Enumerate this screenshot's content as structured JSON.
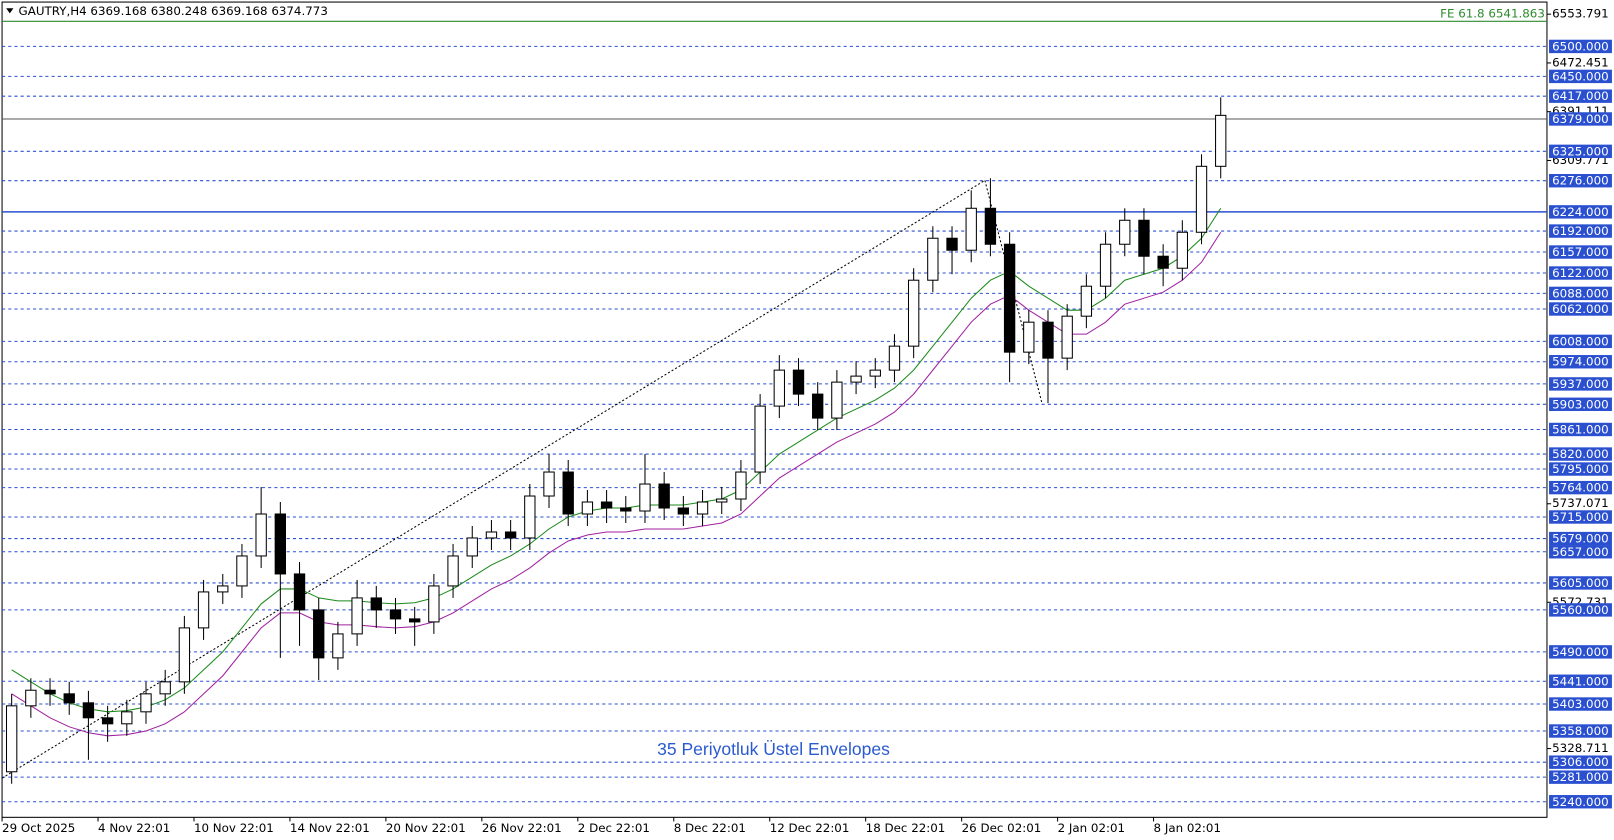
{
  "chart_data": {
    "type": "candlestick",
    "title": "GAUTRY,H4  6369.168 6380.248 6369.168 6374.773",
    "annotation": "35 Periyotluk Üstel Envelopes",
    "xlim": [
      0,
      483
    ],
    "ylim": [
      5214,
      6574
    ],
    "xticks": [
      {
        "value": 0,
        "label": "29 Oct 2025"
      },
      {
        "value": 30,
        "label": "4 Nov 22:01"
      },
      {
        "value": 60,
        "label": "10 Nov 22:01"
      },
      {
        "value": 90,
        "label": "14 Nov 22:01"
      },
      {
        "value": 120,
        "label": "20 Nov 22:01"
      },
      {
        "value": 150,
        "label": "26 Nov 22:01"
      },
      {
        "value": 180,
        "label": "2 Dec 22:01"
      },
      {
        "value": 210,
        "label": "8 Dec 22:01"
      },
      {
        "value": 240,
        "label": "12 Dec 22:01"
      },
      {
        "value": 270,
        "label": "18 Dec 22:01"
      },
      {
        "value": 300,
        "label": "26 Dec 02:01"
      },
      {
        "value": 330,
        "label": "2 Jan 02:01"
      },
      {
        "value": 360,
        "label": "8 Jan 02:01"
      }
    ],
    "yticks": [
      6553.791,
      6472.451,
      6391.111,
      6309.771,
      5737.071,
      5572.731,
      5328.711
    ],
    "levels": [
      {
        "value": 6500,
        "label": "6500.000"
      },
      {
        "value": 6450,
        "label": "6450.000"
      },
      {
        "value": 6417,
        "label": "6417.000"
      },
      {
        "value": 6379,
        "label": "6379.000",
        "line": "solid"
      },
      {
        "value": 6325,
        "label": "6325.000"
      },
      {
        "value": 6276,
        "label": "6276.000"
      },
      {
        "value": 6224,
        "label": "6224.000",
        "line": "solid"
      },
      {
        "value": 6192,
        "label": "6192.000"
      },
      {
        "value": 6157,
        "label": "6157.000"
      },
      {
        "value": 6122,
        "label": "6122.000"
      },
      {
        "value": 6088,
        "label": "6088.000"
      },
      {
        "value": 6062,
        "label": "6062.000"
      },
      {
        "value": 6008,
        "label": "6008.000"
      },
      {
        "value": 5974,
        "label": "5974.000"
      },
      {
        "value": 5937,
        "label": "5937.000"
      },
      {
        "value": 5903,
        "label": "5903.000"
      },
      {
        "value": 5861,
        "label": "5861.000"
      },
      {
        "value": 5820,
        "label": "5820.000"
      },
      {
        "value": 5795,
        "label": "5795.000"
      },
      {
        "value": 5764,
        "label": "5764.000"
      },
      {
        "value": 5715,
        "label": "5715.000"
      },
      {
        "value": 5679,
        "label": "5679.000"
      },
      {
        "value": 5657,
        "label": "5657.000"
      },
      {
        "value": 5605,
        "label": "5605.000"
      },
      {
        "value": 5560,
        "label": "5560.000"
      },
      {
        "value": 5490,
        "label": "5490.000"
      },
      {
        "value": 5441,
        "label": "5441.000"
      },
      {
        "value": 5403,
        "label": "5403.000"
      },
      {
        "value": 5358,
        "label": "5358.000"
      },
      {
        "value": 5306,
        "label": "5306.000"
      },
      {
        "value": 5281,
        "label": "5281.000"
      },
      {
        "value": 5240,
        "label": "5240.000"
      }
    ],
    "fib_line": {
      "value": 6541.863,
      "label": "FE 61.8 6541.863",
      "color": "#2e8b2e"
    },
    "x": [
      3,
      9,
      15,
      21,
      27,
      33,
      39,
      45,
      51,
      57,
      63,
      69,
      75,
      81,
      87,
      93,
      99,
      105,
      111,
      117,
      123,
      129,
      135,
      141,
      147,
      153,
      159,
      165,
      171,
      177,
      183,
      189,
      195,
      201,
      207,
      213,
      219,
      225,
      231,
      237,
      243,
      249,
      255,
      261,
      267,
      273,
      279,
      285,
      291,
      297,
      303,
      309,
      315,
      321,
      327,
      333,
      339,
      345,
      351,
      357,
      363,
      369,
      375,
      381
    ],
    "open": [
      5290,
      5400,
      5426,
      5420,
      5405,
      5380,
      5370,
      5390,
      5420,
      5440,
      5530,
      5590,
      5600,
      5650,
      5720,
      5620,
      5560,
      5480,
      5520,
      5580,
      5560,
      5545,
      5540,
      5600,
      5650,
      5680,
      5690,
      5680,
      5750,
      5790,
      5720,
      5740,
      5730,
      5725,
      5770,
      5730,
      5720,
      5740,
      5745,
      5790,
      5900,
      5960,
      5920,
      5880,
      5940,
      5950,
      5960,
      6000,
      6110,
      6180,
      6160,
      6230,
      6170,
      5990,
      6040,
      5980,
      6050,
      6100,
      6170,
      6210,
      6150,
      6130,
      6190,
      6300
    ],
    "high": [
      5420,
      5446,
      5446,
      5440,
      5425,
      5400,
      5410,
      5440,
      5460,
      5550,
      5610,
      5620,
      5670,
      5765,
      5740,
      5640,
      5580,
      5540,
      5610,
      5600,
      5580,
      5565,
      5620,
      5670,
      5700,
      5710,
      5710,
      5770,
      5820,
      5810,
      5760,
      5760,
      5750,
      5820,
      5790,
      5750,
      5760,
      5765,
      5810,
      5920,
      5985,
      5980,
      5940,
      5960,
      5975,
      5980,
      6020,
      6130,
      6200,
      6200,
      6260,
      6280,
      6190,
      6060,
      6060,
      6070,
      6120,
      6190,
      6230,
      6230,
      6170,
      6210,
      6320,
      6415
    ],
    "low": [
      5270,
      5380,
      5400,
      5385,
      5310,
      5340,
      5350,
      5370,
      5400,
      5420,
      5510,
      5570,
      5580,
      5630,
      5480,
      5500,
      5443,
      5460,
      5500,
      5530,
      5520,
      5500,
      5520,
      5580,
      5630,
      5660,
      5660,
      5660,
      5730,
      5700,
      5700,
      5705,
      5705,
      5705,
      5710,
      5700,
      5700,
      5720,
      5725,
      5770,
      5880,
      5900,
      5860,
      5860,
      5920,
      5930,
      5940,
      5980,
      6090,
      6120,
      6140,
      6150,
      5940,
      5970,
      5905,
      5960,
      6030,
      6080,
      6150,
      6120,
      6100,
      6110,
      6170,
      6280
    ],
    "close": [
      5400,
      5426,
      5420,
      5405,
      5380,
      5370,
      5390,
      5420,
      5440,
      5530,
      5590,
      5600,
      5650,
      5720,
      5620,
      5560,
      5480,
      5520,
      5580,
      5560,
      5545,
      5540,
      5600,
      5650,
      5680,
      5690,
      5680,
      5750,
      5790,
      5720,
      5740,
      5730,
      5725,
      5770,
      5730,
      5720,
      5740,
      5745,
      5790,
      5900,
      5960,
      5920,
      5880,
      5940,
      5950,
      5960,
      6000,
      6110,
      6180,
      6160,
      6230,
      6170,
      5990,
      6040,
      5980,
      6050,
      6100,
      6170,
      6210,
      6150,
      6130,
      6190,
      6300,
      6385
    ],
    "overlays": [
      {
        "color": "#1a8a1a",
        "values": [
          5460,
          5440,
          5420,
          5405,
          5395,
          5390,
          5392,
          5398,
          5410,
          5430,
          5460,
          5490,
          5530,
          5570,
          5595,
          5595,
          5580,
          5575,
          5575,
          5572,
          5570,
          5572,
          5580,
          5595,
          5615,
          5635,
          5650,
          5670,
          5695,
          5715,
          5725,
          5730,
          5730,
          5735,
          5735,
          5735,
          5740,
          5745,
          5760,
          5790,
          5820,
          5840,
          5860,
          5880,
          5895,
          5910,
          5930,
          5960,
          6000,
          6040,
          6080,
          6110,
          6125,
          6100,
          6080,
          6060,
          6060,
          6080,
          6110,
          6120,
          6130,
          6150,
          6180,
          6230
        ]
      },
      {
        "color": "#a020a0",
        "values": [
          5420,
          5400,
          5380,
          5365,
          5355,
          5350,
          5352,
          5358,
          5370,
          5390,
          5420,
          5450,
          5490,
          5530,
          5555,
          5555,
          5540,
          5535,
          5535,
          5532,
          5530,
          5532,
          5540,
          5555,
          5575,
          5595,
          5610,
          5630,
          5655,
          5675,
          5685,
          5690,
          5690,
          5695,
          5695,
          5695,
          5700,
          5705,
          5720,
          5750,
          5780,
          5800,
          5820,
          5840,
          5855,
          5870,
          5890,
          5920,
          5960,
          6000,
          6040,
          6070,
          6085,
          6060,
          6040,
          6020,
          6020,
          6040,
          6070,
          6080,
          6090,
          6110,
          6140,
          6190
        ]
      }
    ],
    "level_color": "#2a50d0",
    "up_color": "#ffffff",
    "down_color": "#000000"
  }
}
